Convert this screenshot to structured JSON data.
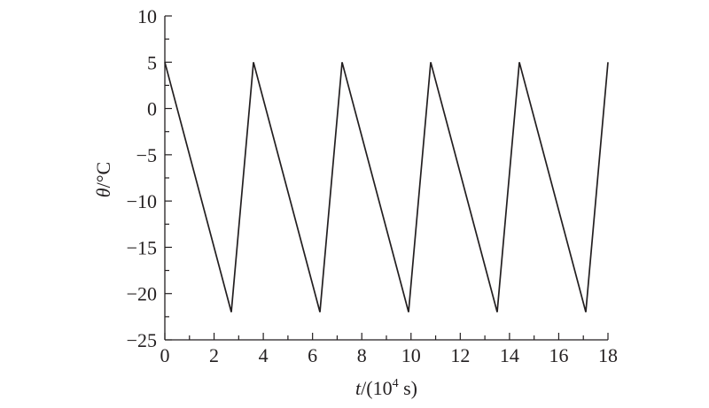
{
  "chart_data": {
    "type": "line",
    "xlabel_var": "t",
    "xlabel_unit_open": "/(10",
    "xlabel_exp": "4",
    "xlabel_unit_close": " s)",
    "ylabel_var": "θ",
    "ylabel_unit": "/°C",
    "xlim": [
      0,
      18
    ],
    "ylim": [
      -25,
      10
    ],
    "xticks": [
      0,
      2,
      4,
      6,
      8,
      10,
      12,
      14,
      16,
      18
    ],
    "yticks": [
      10,
      5,
      0,
      -5,
      -10,
      -15,
      -20,
      -25
    ],
    "grid": false,
    "series": [
      {
        "x": [
          0,
          2.7,
          3.6,
          6.3,
          7.2,
          9.9,
          10.8,
          13.5,
          14.4,
          17.1,
          18
        ],
        "y": [
          5,
          -22,
          5,
          -22,
          5,
          -22,
          5,
          -22,
          5,
          -22,
          5
        ]
      }
    ]
  }
}
